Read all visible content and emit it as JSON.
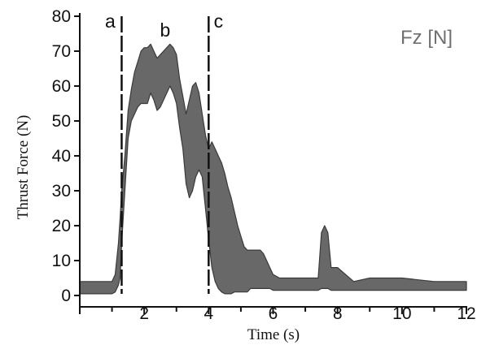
{
  "chart_data": {
    "type": "area",
    "title": "",
    "xlabel": "Time (s)",
    "ylabel": "Thrust Force (N)",
    "legend": "Fz [N]",
    "legend_placement": "top-right",
    "xlim": [
      0,
      12
    ],
    "ylim": [
      0,
      80
    ],
    "x_ticks": [
      2,
      4,
      6,
      8,
      10,
      12
    ],
    "x_tick_labels": [
      "2",
      "4",
      "6",
      "8",
      "10",
      "12"
    ],
    "y_ticks": [
      0,
      10,
      20,
      30,
      40,
      50,
      60,
      70,
      80
    ],
    "y_tick_labels": [
      "0",
      "10",
      "20",
      "30",
      "40",
      "50",
      "60",
      "70",
      "80"
    ],
    "grid": false,
    "fill_color": "#686868",
    "edge_color": "#3a3a3a",
    "markers": [
      {
        "label": "a",
        "x": 1.3
      },
      {
        "label": "b",
        "x": 2.65
      },
      {
        "label": "c",
        "x": 4.0
      }
    ],
    "series": [
      {
        "x": [
          0,
          0.5,
          1.0,
          1.1,
          1.2,
          1.25,
          1.3,
          1.4,
          1.5,
          1.6,
          1.7,
          1.8,
          1.9,
          2.0,
          2.1,
          2.2,
          2.3,
          2.4,
          2.5,
          2.6,
          2.7,
          2.8,
          2.9,
          3.0,
          3.1,
          3.2,
          3.3,
          3.4,
          3.5,
          3.6,
          3.7,
          3.8,
          3.9,
          4.0,
          4.1,
          4.2,
          4.3,
          4.4,
          4.5,
          4.6,
          4.7,
          4.8,
          4.9,
          5.0,
          5.1,
          5.2,
          5.3,
          5.4,
          5.5,
          5.6,
          5.7,
          5.8,
          5.9,
          6.0,
          6.2,
          6.5,
          7.0,
          7.4,
          7.5,
          7.6,
          7.7,
          7.8,
          8.0,
          8.5,
          9.0,
          10.0,
          11.0,
          12.0
        ],
        "upper": [
          4,
          4,
          4,
          6,
          15,
          22,
          30,
          40,
          53,
          59,
          64,
          67,
          70,
          71,
          71,
          72,
          70,
          68,
          69,
          70,
          71,
          72,
          71,
          69,
          62,
          57,
          52,
          56,
          60,
          61,
          58,
          52,
          46,
          42,
          44,
          42,
          40,
          38,
          35,
          31,
          28,
          24,
          20,
          17,
          14,
          13,
          13,
          13,
          13,
          13,
          12,
          10,
          8,
          6,
          5,
          5,
          5,
          5,
          18,
          20,
          18,
          8,
          8,
          4,
          5,
          5,
          4,
          4
        ],
        "lower": [
          0.5,
          0.5,
          0.5,
          1,
          3,
          5,
          15,
          30,
          45,
          50,
          52,
          54,
          55,
          55,
          55,
          58,
          56,
          53,
          54,
          56,
          58,
          60,
          58,
          55,
          48,
          42,
          32,
          28,
          30,
          34,
          36,
          34,
          25,
          16,
          8,
          4,
          2,
          1,
          0.5,
          0.5,
          0.5,
          1,
          1,
          1,
          1,
          1,
          2,
          2,
          2,
          2,
          2,
          2,
          2,
          1.5,
          1.5,
          1.5,
          1.5,
          1.5,
          2,
          2,
          2,
          1.5,
          1.5,
          1.5,
          1.5,
          1.5,
          1.5,
          1.5
        ]
      }
    ]
  }
}
